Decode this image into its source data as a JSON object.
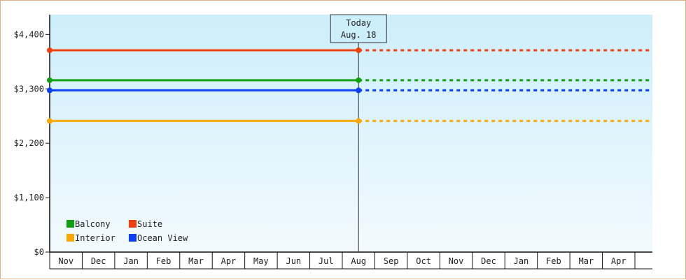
{
  "chart_data": {
    "type": "line",
    "ylim": [
      0,
      4800
    ],
    "y_ticks": [
      {
        "value": 0,
        "label": "$0"
      },
      {
        "value": 1100,
        "label": "$1,100"
      },
      {
        "value": 2200,
        "label": "$2,200"
      },
      {
        "value": 3300,
        "label": "$3,300"
      },
      {
        "value": 4400,
        "label": "$4,400"
      }
    ],
    "x_categories": [
      "Nov",
      "Dec",
      "Jan",
      "Feb",
      "Mar",
      "Apr",
      "May",
      "Jun",
      "Jul",
      "Aug",
      "Sep",
      "Oct",
      "Nov",
      "Dec",
      "Jan",
      "Feb",
      "Mar",
      "Apr"
    ],
    "today_marker": {
      "title": "Today",
      "date": "Aug. 18",
      "category_index": 9
    },
    "series": [
      {
        "name": "Suite",
        "color": "#f04010",
        "value": 4080
      },
      {
        "name": "Balcony",
        "color": "#11a011",
        "value": 3475
      },
      {
        "name": "Ocean View",
        "color": "#0a40f5",
        "value": 3270
      },
      {
        "name": "Interior",
        "color": "#f8a800",
        "value": 2650
      }
    ],
    "legend": {
      "placement": "bottom-left",
      "rows": [
        [
          "Balcony",
          "Suite"
        ],
        [
          "Interior",
          "Ocean View"
        ]
      ]
    },
    "colors": {
      "plot_top": "#cdeefb",
      "plot_bottom": "#f2fafe",
      "frame_border": "#e2b27e"
    }
  }
}
